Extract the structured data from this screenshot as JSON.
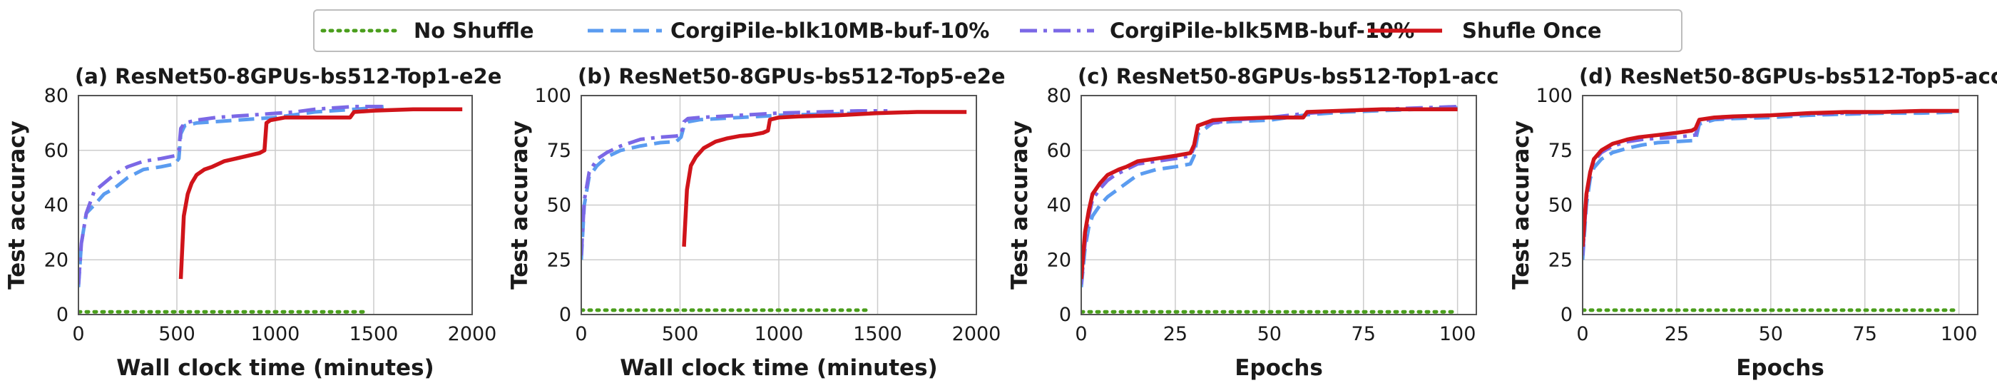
{
  "legend": {
    "items": [
      {
        "label": "No Shuffle",
        "color": "#4a9e1c",
        "dash": "dotted"
      },
      {
        "label": "CorgiPile-blk10MB-buf-10%",
        "color": "#5b9cf0",
        "dash": "dashed"
      },
      {
        "label": "CorgiPile-blk5MB-buf-10%",
        "color": "#7b68e6",
        "dash": "dashdot"
      },
      {
        "label": "Shufle Once",
        "color": "#d0141a",
        "dash": "solid"
      }
    ]
  },
  "chart_data": [
    {
      "type": "line",
      "title": "(a) ResNet50-8GPUs-bs512-Top1-e2e",
      "xlabel": "Wall clock time (minutes)",
      "ylabel": "Test accuracy",
      "xlim": [
        0,
        2000
      ],
      "ylim": [
        0,
        80
      ],
      "xticks": [
        0,
        500,
        1000,
        1500,
        2000
      ],
      "yticks": [
        0,
        20,
        40,
        60,
        80
      ],
      "grid": true,
      "series": [
        {
          "name": "No Shuffle",
          "x": [
            0,
            1450
          ],
          "y": [
            1,
            1
          ]
        },
        {
          "name": "CorgiPile-blk10MB-buf-10%",
          "x": [
            0,
            15,
            40,
            80,
            130,
            180,
            250,
            330,
            420,
            490,
            510,
            520,
            540,
            600,
            700,
            800,
            900,
            1000,
            1100,
            1200,
            1300,
            1400,
            1500,
            1550
          ],
          "y": [
            10,
            26,
            37,
            40,
            44,
            46,
            50,
            53,
            54,
            55,
            57,
            66,
            69,
            70,
            70.5,
            71,
            71.5,
            72,
            73,
            74,
            74.5,
            75,
            75.5,
            76
          ]
        },
        {
          "name": "CorgiPile-blk5MB-buf-10%",
          "x": [
            0,
            15,
            40,
            80,
            130,
            180,
            250,
            330,
            420,
            490,
            510,
            520,
            540,
            600,
            700,
            800,
            900,
            1000,
            1100,
            1200,
            1300,
            1400,
            1500,
            1550
          ],
          "y": [
            11,
            26,
            37,
            45,
            48,
            51,
            54,
            56,
            57,
            58,
            60,
            68,
            70,
            71,
            72,
            72.5,
            73,
            73.5,
            74,
            75,
            75.5,
            76,
            76,
            76
          ]
        },
        {
          "name": "Shufle Once",
          "x": [
            520,
            535,
            555,
            575,
            600,
            640,
            680,
            740,
            800,
            860,
            920,
            945,
            955,
            975,
            1050,
            1200,
            1380,
            1400,
            1500,
            1700,
            1950
          ],
          "y": [
            13,
            36,
            44,
            48,
            51,
            53,
            54,
            56,
            57,
            58,
            59,
            60,
            70,
            71,
            72,
            72,
            72,
            74,
            74.5,
            75,
            75
          ]
        }
      ]
    },
    {
      "type": "line",
      "title": "(b) ResNet50-8GPUs-bs512-Top5-e2e",
      "xlabel": "Wall clock time (minutes)",
      "ylabel": "Test accuracy",
      "xlim": [
        0,
        2000
      ],
      "ylim": [
        0,
        100
      ],
      "xticks": [
        0,
        500,
        1000,
        1500,
        2000
      ],
      "yticks": [
        0,
        25,
        50,
        75,
        100
      ],
      "grid": true,
      "series": [
        {
          "name": "No Shuffle",
          "x": [
            0,
            1450
          ],
          "y": [
            2,
            2
          ]
        },
        {
          "name": "CorgiPile-blk10MB-buf-10%",
          "x": [
            0,
            15,
            40,
            80,
            130,
            200,
            300,
            400,
            480,
            505,
            520,
            540,
            600,
            700,
            800,
            900,
            1000,
            1200,
            1400,
            1550
          ],
          "y": [
            25,
            50,
            63,
            68,
            72,
            75,
            77,
            78.5,
            79,
            81,
            86,
            88,
            89,
            89.5,
            90,
            90.5,
            91,
            91.5,
            92,
            92
          ]
        },
        {
          "name": "CorgiPile-blk5MB-buf-10%",
          "x": [
            0,
            15,
            40,
            80,
            130,
            200,
            300,
            400,
            480,
            505,
            520,
            540,
            600,
            700,
            800,
            900,
            1000,
            1200,
            1400,
            1550
          ],
          "y": [
            27,
            52,
            65,
            71,
            74,
            77,
            80,
            81,
            81.5,
            82,
            88,
            89.5,
            90,
            90.5,
            91,
            91.5,
            92,
            92.5,
            93,
            93
          ]
        },
        {
          "name": "Shufle Once",
          "x": [
            520,
            535,
            555,
            580,
            620,
            680,
            740,
            800,
            860,
            920,
            945,
            955,
            1000,
            1100,
            1300,
            1500,
            1700,
            1950
          ],
          "y": [
            31,
            57,
            68,
            72,
            76,
            79,
            80.5,
            81.5,
            82,
            83,
            84,
            89,
            90,
            90.5,
            91,
            92,
            92.5,
            92.5
          ]
        }
      ]
    },
    {
      "type": "line",
      "title": "(c) ResNet50-8GPUs-bs512-Top1-acc",
      "xlabel": "Epochs",
      "ylabel": "Test accuracy",
      "xlim": [
        0,
        105
      ],
      "ylim": [
        0,
        80
      ],
      "xticks": [
        0,
        25,
        50,
        75,
        100
      ],
      "yticks": [
        0,
        20,
        40,
        60,
        80
      ],
      "grid": true,
      "series": [
        {
          "name": "No Shuffle",
          "x": [
            0,
            100
          ],
          "y": [
            1,
            1
          ]
        },
        {
          "name": "CorgiPile-blk10MB-buf-10%",
          "x": [
            0,
            1,
            2,
            3,
            5,
            7,
            9,
            12,
            15,
            20,
            25,
            29,
            30,
            31,
            35,
            40,
            50,
            60,
            70,
            80,
            90,
            100
          ],
          "y": [
            10,
            24,
            32,
            36,
            40,
            43,
            45,
            48,
            51,
            53,
            54,
            55,
            58,
            66,
            70,
            70.5,
            71,
            73,
            74,
            74.5,
            75,
            75.5
          ]
        },
        {
          "name": "CorgiPile-blk5MB-buf-10%",
          "x": [
            0,
            1,
            2,
            3,
            5,
            7,
            9,
            12,
            15,
            20,
            25,
            29,
            30,
            31,
            35,
            40,
            50,
            60,
            70,
            80,
            90,
            100
          ],
          "y": [
            11,
            26,
            36,
            42,
            46,
            49,
            51,
            53,
            55,
            56,
            57,
            58,
            61,
            68,
            70,
            71,
            72,
            73.5,
            74.5,
            75,
            75.5,
            76
          ]
        },
        {
          "name": "Shufle Once",
          "x": [
            0,
            1,
            2,
            3,
            5,
            7,
            10,
            12,
            15,
            20,
            25,
            29,
            30,
            31,
            35,
            40,
            50,
            59,
            60,
            70,
            80,
            90,
            100
          ],
          "y": [
            13,
            30,
            38,
            44,
            48,
            51,
            53,
            54,
            56,
            57,
            58,
            59,
            62,
            69,
            71,
            71.5,
            72,
            72,
            74,
            74.5,
            75,
            75,
            75
          ]
        }
      ]
    },
    {
      "type": "line",
      "title": "(d) ResNet50-8GPUs-bs512-Top5-acc",
      "xlabel": "Epochs",
      "ylabel": "Test accuracy",
      "xlim": [
        0,
        105
      ],
      "ylim": [
        0,
        100
      ],
      "xticks": [
        0,
        25,
        50,
        75,
        100
      ],
      "yticks": [
        0,
        25,
        50,
        75,
        100
      ],
      "grid": true,
      "series": [
        {
          "name": "No Shuffle",
          "x": [
            0,
            100
          ],
          "y": [
            2,
            2
          ]
        },
        {
          "name": "CorgiPile-blk10MB-buf-10%",
          "x": [
            0,
            1,
            2,
            3,
            5,
            8,
            12,
            16,
            20,
            25,
            30,
            31,
            35,
            40,
            50,
            60,
            70,
            80,
            90,
            100
          ],
          "y": [
            25,
            50,
            62,
            67,
            71,
            74,
            76,
            77.5,
            78.5,
            79,
            79.5,
            87,
            89,
            89.5,
            90,
            91,
            91.5,
            92,
            92,
            92.5
          ]
        },
        {
          "name": "CorgiPile-blk5MB-buf-10%",
          "x": [
            0,
            1,
            2,
            3,
            5,
            8,
            12,
            16,
            20,
            25,
            30,
            31,
            35,
            40,
            50,
            60,
            70,
            80,
            90,
            100
          ],
          "y": [
            27,
            53,
            65,
            70,
            74,
            77,
            79,
            80,
            80.5,
            81,
            82,
            88,
            89.5,
            90,
            91,
            91.5,
            92,
            92.5,
            93,
            93
          ]
        },
        {
          "name": "Shufle Once",
          "x": [
            0,
            1,
            2,
            3,
            5,
            8,
            10,
            12,
            15,
            20,
            25,
            29,
            30,
            31,
            35,
            40,
            50,
            60,
            70,
            80,
            90,
            100
          ],
          "y": [
            31,
            55,
            65,
            71,
            75,
            78,
            79,
            80,
            81,
            82,
            83,
            84,
            85,
            89,
            90,
            90.5,
            91,
            92,
            92.5,
            92.5,
            93,
            93
          ]
        }
      ]
    }
  ]
}
